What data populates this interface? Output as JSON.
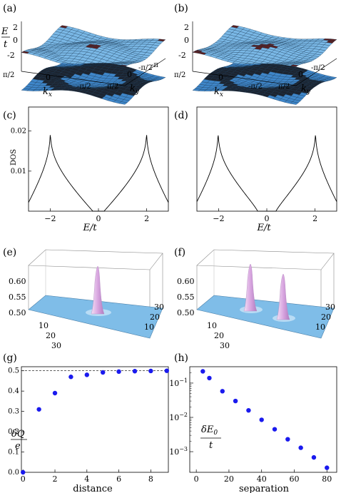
{
  "figure": {
    "panel_labels": [
      "(a)",
      "(b)",
      "(c)",
      "(d)",
      "(e)",
      "(f)",
      "(g)",
      "(h)"
    ]
  },
  "surface_panels": {
    "energy_ticks": [
      "2",
      "0",
      "-2"
    ],
    "kx_ticks": [
      "π/2",
      "0",
      "-π/2"
    ],
    "ky_ticks": [
      "π/2",
      "0",
      "-π/2",
      "-π"
    ],
    "ky_ticks_b": [
      "π/2",
      "0",
      "-π/2"
    ],
    "e_label": "E/t",
    "kx_label": "kx",
    "ky_label": "ky",
    "colors": {
      "top": "#7ab8e6",
      "bottom": "#3f86c9",
      "mesh": "#12324f",
      "back": "#5a1e1e"
    }
  },
  "density_panels": {
    "z_ticks": [
      "0.60",
      "0.55",
      "0.50"
    ],
    "xy_ticks_left": [
      "10",
      "20",
      "30"
    ],
    "xy_ticks_right": [
      "10",
      "20",
      "30"
    ],
    "colors": {
      "floor": "#7fbde8",
      "peak": "#e2b6e8"
    }
  },
  "chart_data": [
    {
      "panel": "c",
      "type": "line",
      "ylabel": "DOS",
      "xlabel": "E/t",
      "xlim": [
        -2.9,
        2.9
      ],
      "ylim": [
        0,
        0.026
      ],
      "x_ticks": [
        -2,
        0,
        2
      ],
      "x_tick_labels": [
        "−2",
        "0",
        "2"
      ],
      "y_ticks": [
        0.01,
        0.02
      ],
      "y_tick_labels": [
        "0.01",
        "0.02"
      ],
      "series": [
        {
          "gap": 0
        }
      ]
    },
    {
      "panel": "d",
      "type": "line",
      "xlabel": "E/t",
      "xlim": [
        -2.9,
        2.9
      ],
      "ylim": [
        0,
        0.026
      ],
      "x_ticks": [
        -2,
        0,
        2
      ],
      "x_tick_labels": [
        "−2",
        "0",
        "2"
      ],
      "series": [
        {
          "gap": 0.3
        }
      ]
    },
    {
      "panel": "g",
      "type": "scatter",
      "xlabel": "distance",
      "ylabel": "δQ/e",
      "xlim": [
        -0.1,
        9.1
      ],
      "ylim": [
        0,
        0.52
      ],
      "x_ticks": [
        0,
        2,
        4,
        6,
        8
      ],
      "x_tick_labels": [
        "0",
        "2",
        "4",
        "6",
        "8"
      ],
      "y_ticks": [
        0,
        0.1,
        0.2,
        0.3,
        0.4,
        0.5
      ],
      "y_tick_labels": [
        "0.0",
        "0.1",
        "0.2",
        "0.3",
        "0.4",
        "0.5"
      ],
      "reference_line": 0.5,
      "x": [
        0,
        1,
        2,
        3,
        4,
        5,
        6,
        7,
        8,
        9
      ],
      "y": [
        0.0,
        0.31,
        0.39,
        0.47,
        0.48,
        0.492,
        0.496,
        0.498,
        0.499,
        0.5
      ]
    },
    {
      "panel": "h",
      "type": "scatter",
      "xlabel": "separation",
      "ylabel": "δE0/t",
      "log_y": true,
      "xlim": [
        -4,
        86
      ],
      "ylim": [
        0.00025,
        0.3
      ],
      "x_ticks": [
        0,
        20,
        40,
        60,
        80
      ],
      "x_tick_labels": [
        "0",
        "20",
        "40",
        "60",
        "80"
      ],
      "y_ticks": [
        0.001,
        0.01,
        0.1
      ],
      "y_tick_labels": [
        "10−3",
        "10−2",
        "10−1"
      ],
      "x": [
        4,
        8,
        16,
        24,
        32,
        40,
        48,
        56,
        64,
        72,
        80
      ],
      "y": [
        0.22,
        0.14,
        0.058,
        0.03,
        0.016,
        0.0085,
        0.0045,
        0.0023,
        0.0013,
        0.00068,
        0.00034
      ]
    }
  ]
}
